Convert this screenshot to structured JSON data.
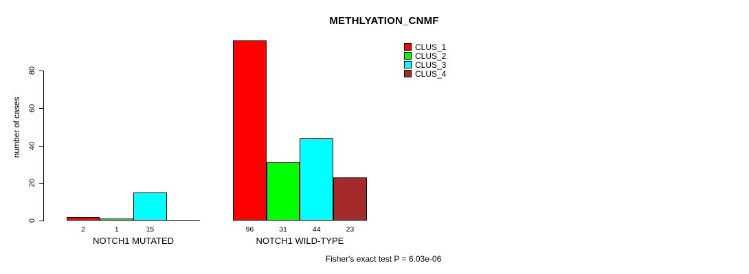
{
  "chart_data": {
    "type": "bar",
    "title": "METHLYATION_CNMF",
    "ylabel": "number of cases",
    "xlabel": "",
    "ylim": [
      0,
      96
    ],
    "yticks": [
      0,
      20,
      40,
      60,
      80
    ],
    "grid": false,
    "legend_position": "top-right",
    "series": [
      {
        "name": "CLUS_1",
        "color": "#FF0000"
      },
      {
        "name": "CLUS_2",
        "color": "#00FF00"
      },
      {
        "name": "CLUS_3",
        "color": "#00FFFF"
      },
      {
        "name": "CLUS_4",
        "color": "#A52A2A"
      }
    ],
    "categories": [
      "NOTCH1 MUTATED",
      "NOTCH1 WILD-TYPE"
    ],
    "groups": [
      {
        "category": "NOTCH1 MUTATED",
        "values": [
          2,
          1,
          15,
          0
        ],
        "bar_labels": [
          "2",
          "1",
          "15",
          ""
        ]
      },
      {
        "category": "NOTCH1 WILD-TYPE",
        "values": [
          96,
          31,
          44,
          23
        ],
        "bar_labels": [
          "96",
          "31",
          "44",
          "23"
        ]
      }
    ],
    "annotation": "Fisher's exact test P = 6.03e-06"
  }
}
